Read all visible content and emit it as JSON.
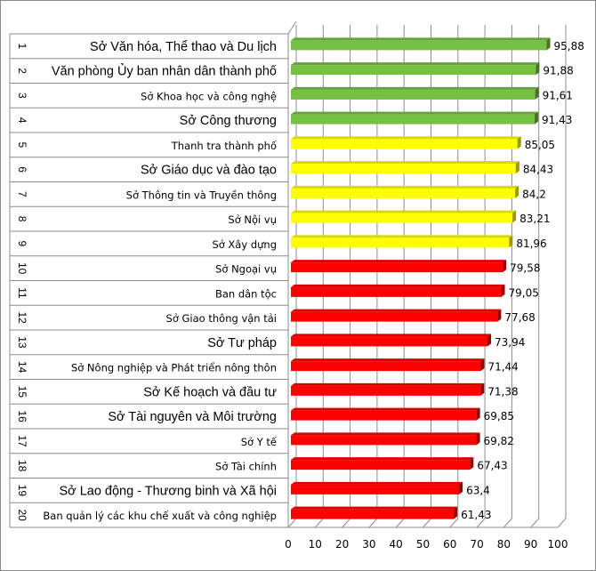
{
  "chart_data": {
    "type": "bar",
    "orientation": "horizontal",
    "style": "3d",
    "title": "",
    "xlabel": "",
    "ylabel": "",
    "xlim": [
      0,
      100
    ],
    "x_ticks": [
      "0",
      "10",
      "20",
      "30",
      "40",
      "50",
      "60",
      "70",
      "80",
      "90",
      "100"
    ],
    "grid": true,
    "ranks": [
      "1",
      "2",
      "3",
      "4",
      "5",
      "6",
      "7",
      "8",
      "9",
      "10",
      "11",
      "12",
      "13",
      "14",
      "15",
      "16",
      "17",
      "18",
      "19",
      "20"
    ],
    "categories": [
      "Sở Văn hóa, Thể thao và Du lịch",
      "Văn phòng Ủy ban nhân dân thành phố",
      "Sở Khoa học và công nghệ",
      "Sở Công thương",
      "Thanh tra thành phố",
      "Sở Giáo dục và đào tạo",
      "Sở Thông tin và Truyền thông",
      "Sở Nội vụ",
      "Sở Xây dựng",
      "Sở Ngoại vụ",
      "Ban dân tộc",
      "Sở Giao thông vận tải",
      "Sở Tư pháp",
      "Sở Nông nghiệp và Phát triển nông thôn",
      "Sở Kế hoạch và đầu tư",
      "Sở Tài nguyên và Môi trường",
      "Sở Y tế",
      "Sở Tài chính",
      "Sở Lao động - Thương binh và Xã hội",
      "Ban quản lý các khu chế xuất và công nghiệp"
    ],
    "values": [
      95.88,
      91.88,
      91.61,
      91.43,
      85.05,
      84.43,
      84.2,
      83.21,
      81.96,
      79.58,
      79.05,
      77.68,
      73.94,
      71.44,
      71.38,
      69.85,
      69.82,
      67.43,
      63.4,
      61.43
    ],
    "data_labels": [
      "95,88",
      "91,88",
      "91,61",
      "91,43",
      "85,05",
      "84,43",
      "84,2",
      "83,21",
      "81,96",
      "79,58",
      "79,05",
      "77,68",
      "73,94",
      "71,44",
      "71,38",
      "69,85",
      "69,82",
      "67,43",
      "63,4",
      "61,43"
    ],
    "colors": [
      "#76c043",
      "#76c043",
      "#76c043",
      "#76c043",
      "#ffff00",
      "#ffff00",
      "#ffff00",
      "#ffff00",
      "#ffff00",
      "#ff0000",
      "#ff0000",
      "#ff0000",
      "#ff0000",
      "#ff0000",
      "#ff0000",
      "#ff0000",
      "#ff0000",
      "#ff0000",
      "#ff0000",
      "#ff0000"
    ],
    "label_style": [
      "l",
      "l",
      "s",
      "l",
      "s",
      "l",
      "s",
      "s",
      "s",
      "s",
      "s",
      "s",
      "l",
      "s",
      "l",
      "l",
      "s",
      "s",
      "l",
      "s"
    ]
  }
}
